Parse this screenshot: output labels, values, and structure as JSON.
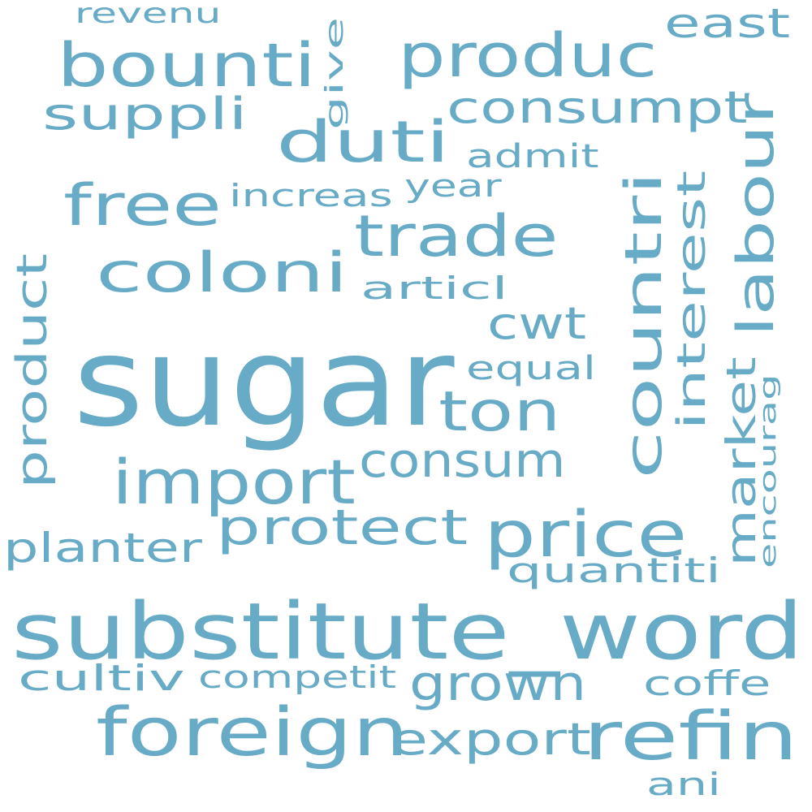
{
  "style": {
    "word_color": "#67abc6",
    "background": "#ffffff"
  },
  "words": [
    {
      "text": "sugar",
      "orientation": "horizontal"
    },
    {
      "text": "substitute_word",
      "orientation": "horizontal"
    },
    {
      "text": "foreign",
      "orientation": "horizontal"
    },
    {
      "text": "refin",
      "orientation": "horizontal"
    },
    {
      "text": "price",
      "orientation": "horizontal"
    },
    {
      "text": "import",
      "orientation": "horizontal"
    },
    {
      "text": "produc",
      "orientation": "horizontal"
    },
    {
      "text": "bounti",
      "orientation": "horizontal"
    },
    {
      "text": "duti",
      "orientation": "horizontal"
    },
    {
      "text": "coloni",
      "orientation": "horizontal"
    },
    {
      "text": "trade",
      "orientation": "horizontal"
    },
    {
      "text": "free",
      "orientation": "horizontal"
    },
    {
      "text": "ton",
      "orientation": "horizontal"
    },
    {
      "text": "countri",
      "orientation": "vertical"
    },
    {
      "text": "labour",
      "orientation": "vertical"
    },
    {
      "text": "consum",
      "orientation": "horizontal"
    },
    {
      "text": "protect",
      "orientation": "horizontal"
    },
    {
      "text": "grown",
      "orientation": "horizontal"
    },
    {
      "text": "export",
      "orientation": "horizontal"
    },
    {
      "text": "consumpt",
      "orientation": "horizontal"
    },
    {
      "text": "suppli",
      "orientation": "horizontal"
    },
    {
      "text": "market",
      "orientation": "vertical"
    },
    {
      "text": "product",
      "orientation": "vertical"
    },
    {
      "text": "interest",
      "orientation": "vertical"
    },
    {
      "text": "cwt",
      "orientation": "horizontal"
    },
    {
      "text": "east",
      "orientation": "horizontal"
    },
    {
      "text": "planter",
      "orientation": "horizontal"
    },
    {
      "text": "cultiv",
      "orientation": "horizontal"
    },
    {
      "text": "quantiti",
      "orientation": "horizontal"
    },
    {
      "text": "competit",
      "orientation": "horizontal"
    },
    {
      "text": "coffe",
      "orientation": "horizontal"
    },
    {
      "text": "ani",
      "orientation": "horizontal"
    },
    {
      "text": "admit",
      "orientation": "horizontal"
    },
    {
      "text": "equal",
      "orientation": "horizontal"
    },
    {
      "text": "articl",
      "orientation": "horizontal"
    },
    {
      "text": "increas",
      "orientation": "horizontal"
    },
    {
      "text": "year",
      "orientation": "horizontal"
    },
    {
      "text": "revenu",
      "orientation": "horizontal"
    },
    {
      "text": "give",
      "orientation": "vertical"
    },
    {
      "text": "encourag",
      "orientation": "vertical"
    }
  ]
}
